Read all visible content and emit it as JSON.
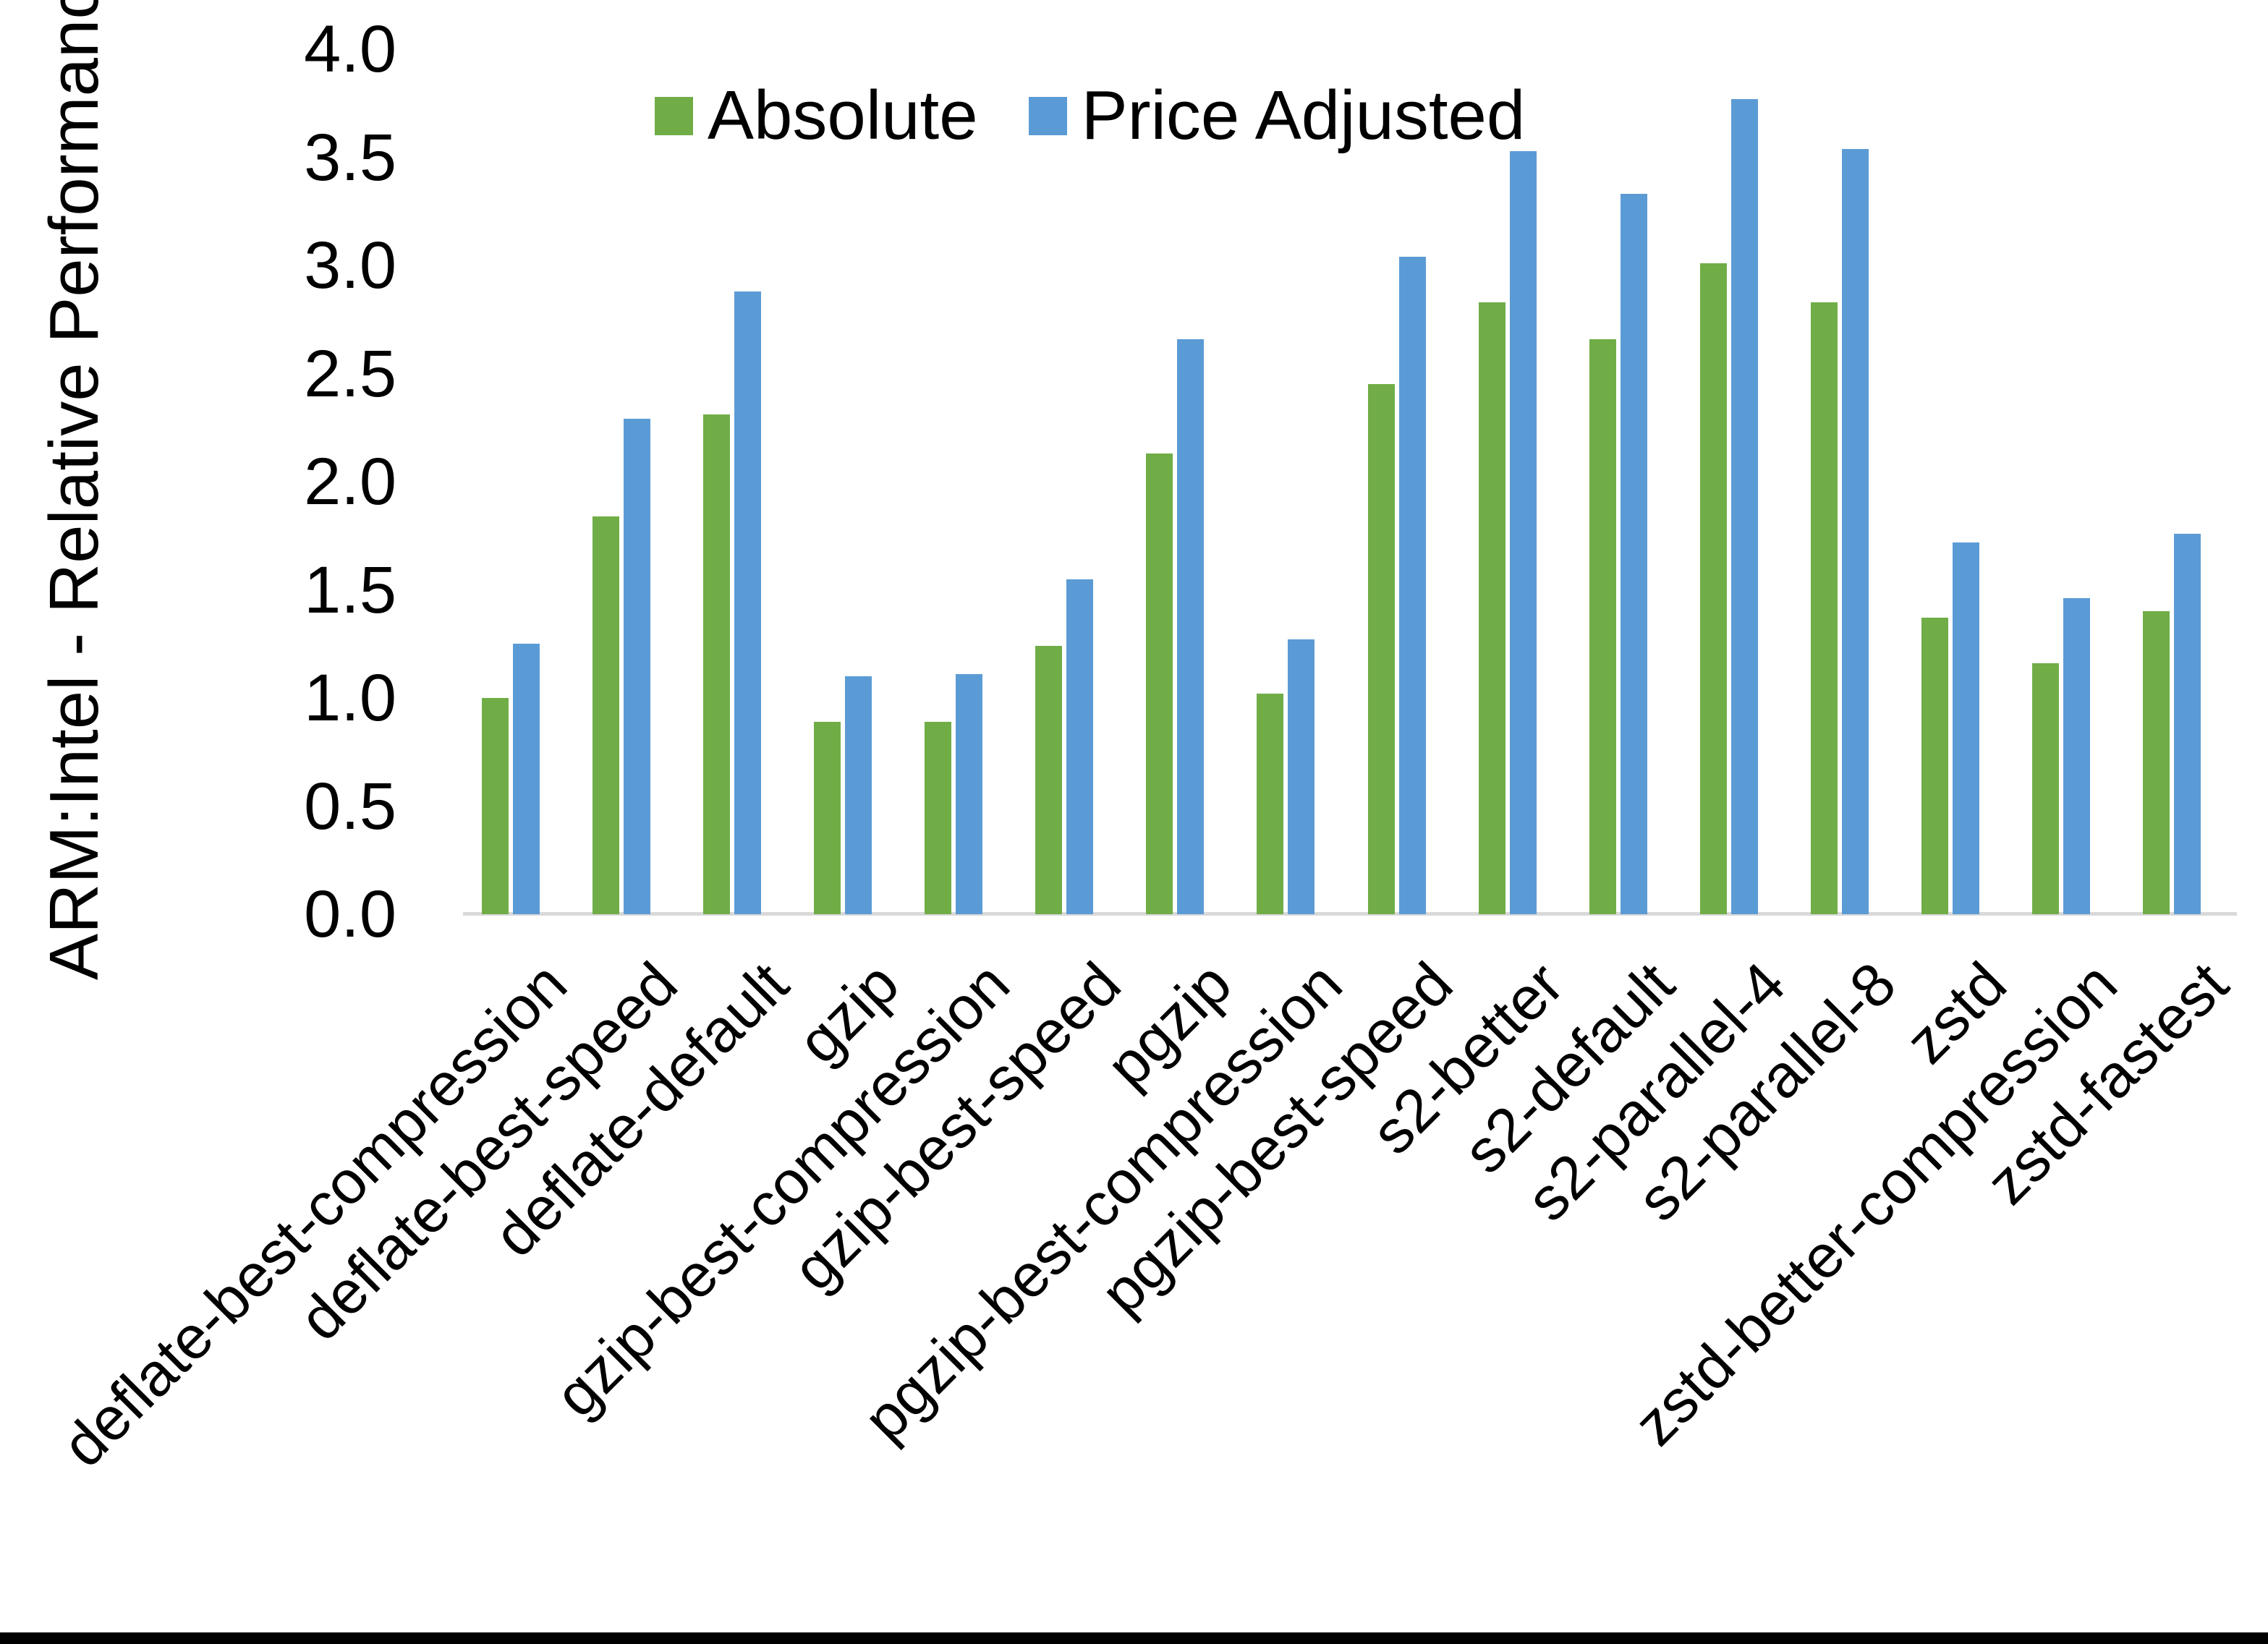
{
  "chart_data": {
    "type": "bar",
    "title": "",
    "xlabel": "",
    "ylabel": "ARM:Intel - Relative Performance",
    "ylim": [
      0,
      4
    ],
    "ytick_step": 0.5,
    "ytick_labels": [
      "0.0",
      "0.5",
      "1.0",
      "1.5",
      "2.0",
      "2.5",
      "3.0",
      "3.5",
      "4.0"
    ],
    "grid": false,
    "legend_position": "top-center",
    "categories": [
      "deflate-best-compression",
      "deflate-best-speed",
      "deflate-default",
      "gzip",
      "gzip-best-compression",
      "gzip-best-speed",
      "pgzip",
      "pgzip-best-compression",
      "pgzip-best-speed",
      "s2-better",
      "s2-default",
      "s2-parallel-4",
      "s2-parallel-8",
      "zstd",
      "zstd-better-compression",
      "zstd-fastest"
    ],
    "series": [
      {
        "name": "Absolute",
        "color": "#70AD47",
        "values": [
          1.0,
          1.84,
          2.31,
          0.89,
          0.89,
          1.24,
          2.13,
          1.02,
          2.45,
          2.83,
          2.66,
          3.01,
          2.83,
          1.37,
          1.16,
          1.4
        ]
      },
      {
        "name": "Price Adjusted",
        "color": "#5B9BD5",
        "values": [
          1.25,
          2.29,
          2.88,
          1.1,
          1.11,
          1.55,
          2.66,
          1.27,
          3.04,
          3.53,
          3.33,
          3.77,
          3.54,
          1.72,
          1.46,
          1.76
        ]
      }
    ],
    "axis_color": "#D9D9D9",
    "text_color": "#000000"
  }
}
